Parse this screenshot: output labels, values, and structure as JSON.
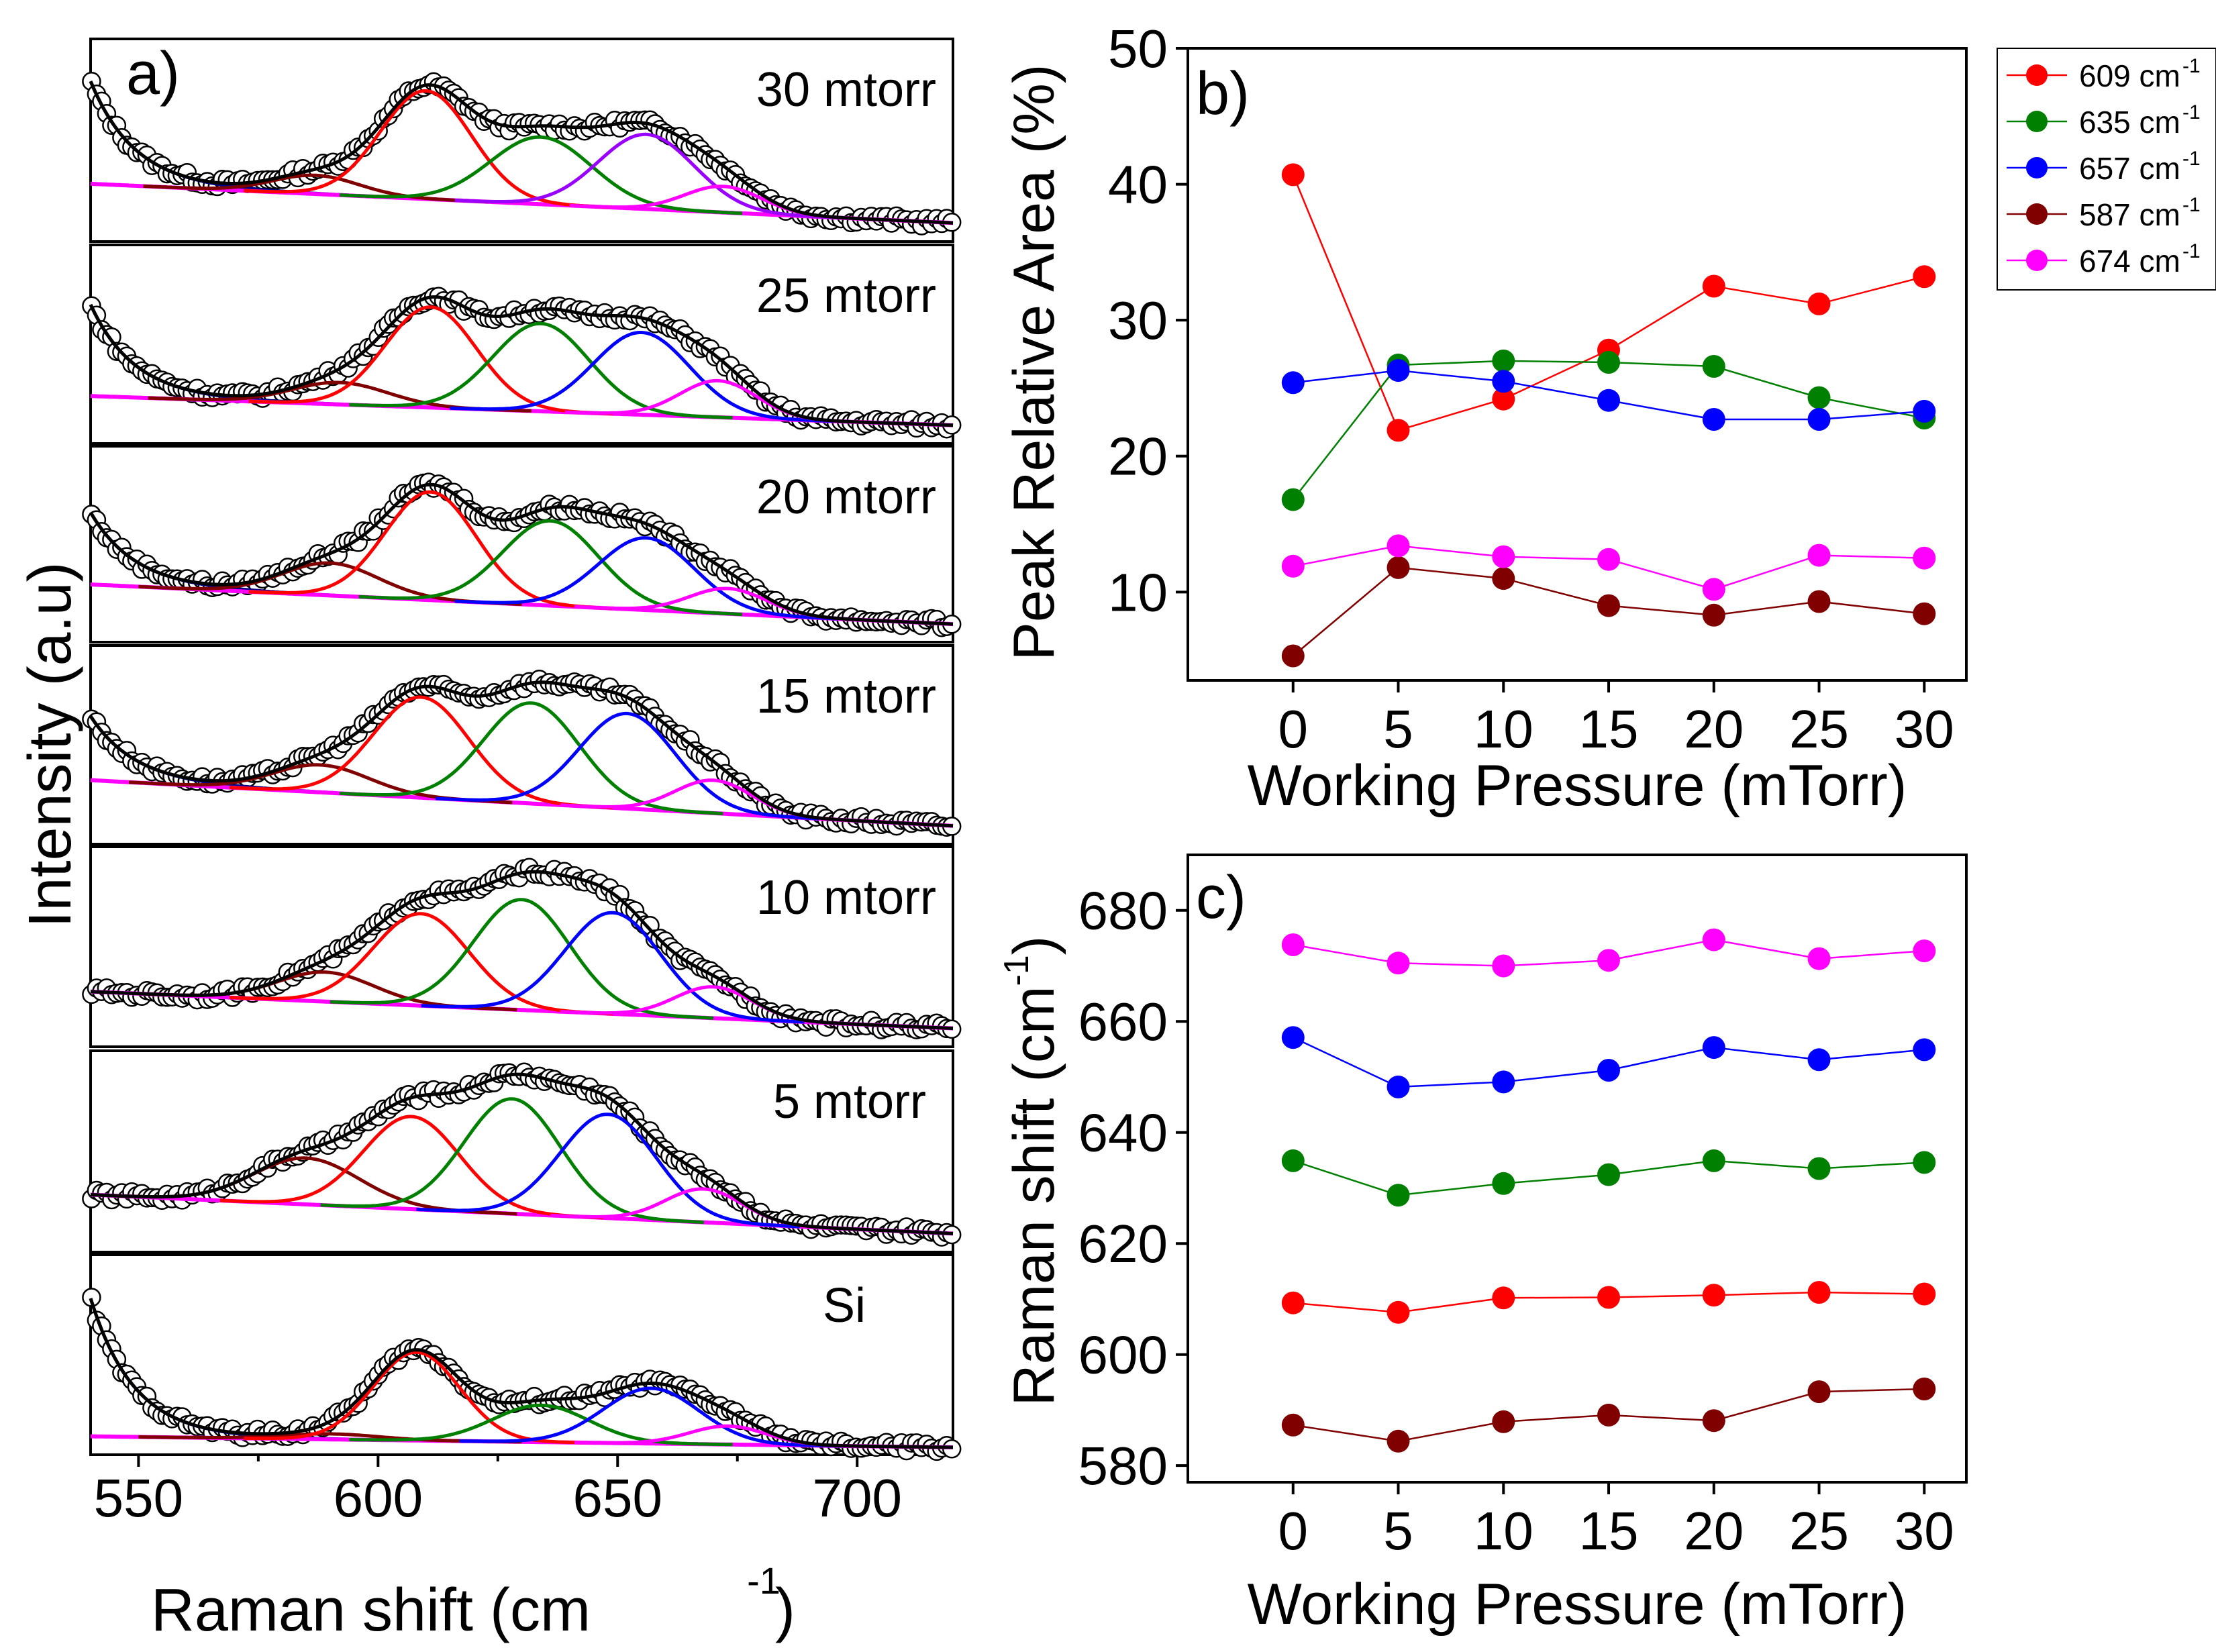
{
  "colors": {
    "red": "#ff0000",
    "green": "#008000",
    "blue": "#0000ff",
    "maroon": "#800000",
    "magenta": "#ff00ff",
    "purple": "#9900ff",
    "navy": "#000080",
    "black": "#000000"
  },
  "chart_data": [
    {
      "id": "a",
      "type": "line",
      "panel_label": "a)",
      "xlabel": "Raman shift (cm",
      "xlabel_sup": "-1",
      "xlabel_tail": ")",
      "ylabel": "Intensity (a.u)",
      "xlim": [
        540,
        720
      ],
      "x_ticks": [
        550,
        600,
        650,
        700
      ],
      "grid": false,
      "fit_components": [
        "587 cm-1 (maroon)",
        "609 cm-1 (red)",
        "635 cm-1 (green)",
        "657 cm-1 (blue/purple)",
        "674 cm-1 (magenta)",
        "baseline (magenta)",
        "envelope (black)",
        "measured (open circles)"
      ],
      "spectra": [
        {
          "label": "30 mtorr",
          "baseline": [
            0.31,
            0.1
          ],
          "left_decay": 0.55,
          "peaks": [
            [
              587,
              0.1,
              9
            ],
            [
              610,
              0.58,
              9.5
            ],
            [
              634,
              0.36,
              10.5
            ],
            [
              656,
              0.4,
              10
            ],
            [
              672,
              0.14,
              8
            ]
          ],
          "peak4_color": "#9900ff"
        },
        {
          "label": "25 mtorr",
          "baseline": [
            0.26,
            0.1
          ],
          "left_decay": 0.5,
          "peaks": [
            [
              592,
              0.12,
              10
            ],
            [
              611,
              0.55,
              9.5
            ],
            [
              634,
              0.48,
              10
            ],
            [
              655,
              0.45,
              10
            ],
            [
              671,
              0.2,
              8
            ]
          ],
          "peak4_color": "#0000ff"
        },
        {
          "label": "20 mtorr",
          "baseline": [
            0.32,
            0.1
          ],
          "left_decay": 0.4,
          "peaks": [
            [
              590,
              0.18,
              10
            ],
            [
              611,
              0.6,
              9.5
            ],
            [
              636,
              0.47,
              10
            ],
            [
              656,
              0.4,
              10
            ],
            [
              673,
              0.14,
              8
            ]
          ],
          "peak4_color": "#0000ff"
        },
        {
          "label": "15 mtorr",
          "baseline": [
            0.35,
            0.1
          ],
          "left_decay": 0.35,
          "peaks": [
            [
              588,
              0.15,
              10
            ],
            [
              609,
              0.55,
              10
            ],
            [
              632,
              0.55,
              10
            ],
            [
              652,
              0.52,
              10
            ],
            [
              670,
              0.18,
              8
            ]
          ],
          "peak4_color": "#0000ff"
        },
        {
          "label": "10 mtorr",
          "baseline": [
            0.3,
            0.1
          ],
          "left_decay": 0.0,
          "peaks": [
            [
              589,
              0.16,
              10
            ],
            [
              609,
              0.5,
              10
            ],
            [
              630,
              0.6,
              10
            ],
            [
              649,
              0.55,
              10
            ],
            [
              670,
              0.17,
              8
            ]
          ],
          "peak4_color": "#0000ff"
        },
        {
          "label": "5 mtorr",
          "baseline": [
            0.31,
            0.1
          ],
          "left_decay": 0.0,
          "peaks": [
            [
              585,
              0.25,
              11
            ],
            [
              607,
              0.5,
              10
            ],
            [
              628,
              0.62,
              10
            ],
            [
              648,
              0.56,
              10
            ],
            [
              668,
              0.18,
              8
            ]
          ],
          "peak4_color": "#0000ff"
        },
        {
          "label": "Si",
          "baseline": [
            0.1,
            0.04
          ],
          "left_decay": 0.75,
          "peaks": [
            [
              590,
              0.03,
              10
            ],
            [
              608,
              0.48,
              9
            ],
            [
              634,
              0.2,
              10
            ],
            [
              657,
              0.3,
              10
            ],
            [
              673,
              0.1,
              8
            ]
          ],
          "peak4_color": "#0000ff"
        }
      ]
    },
    {
      "id": "b",
      "type": "scatter",
      "panel_label": "b)",
      "xlabel": "Working Pressure (mTorr)",
      "ylabel": "Peak Relative Area (%)",
      "xlim": [
        -5,
        32
      ],
      "ylim": [
        3.5,
        50
      ],
      "x_ticks": [
        0,
        5,
        10,
        15,
        20,
        25,
        30
      ],
      "y_ticks": [
        10,
        20,
        30,
        40,
        50
      ],
      "x": [
        0,
        5,
        10,
        15,
        20,
        25,
        30
      ],
      "legend_position": "right",
      "series": [
        {
          "name": "609 cm",
          "sup": "-1",
          "color": "#ff0000",
          "values": [
            40.7,
            21.9,
            24.2,
            27.8,
            32.5,
            31.2,
            33.2
          ]
        },
        {
          "name": "635 cm",
          "sup": "-1",
          "color": "#008000",
          "values": [
            16.8,
            26.7,
            27.0,
            26.9,
            26.6,
            24.3,
            22.8
          ]
        },
        {
          "name": "657 cm",
          "sup": "-1",
          "color": "#0000ff",
          "values": [
            25.4,
            26.3,
            25.5,
            24.1,
            22.7,
            22.7,
            23.3
          ]
        },
        {
          "name": "587 cm",
          "sup": "-1",
          "color": "#800000",
          "values": [
            5.3,
            11.8,
            11.0,
            9.0,
            8.3,
            9.3,
            8.4
          ]
        },
        {
          "name": "674 cm",
          "sup": "-1",
          "color": "#ff00ff",
          "values": [
            11.9,
            13.4,
            12.6,
            12.4,
            10.2,
            12.7,
            12.5
          ]
        }
      ]
    },
    {
      "id": "c",
      "type": "scatter",
      "panel_label": "c)",
      "xlabel": "Working Pressure (mTorr)",
      "ylabel": "Raman shift (cm",
      "ylabel_sup": "-1",
      "ylabel_tail": ")",
      "xlim": [
        -5,
        32
      ],
      "ylim": [
        577,
        690
      ],
      "x_ticks": [
        0,
        5,
        10,
        15,
        20,
        25,
        30
      ],
      "y_ticks": [
        580,
        600,
        620,
        640,
        660,
        680
      ],
      "x": [
        0,
        5,
        10,
        15,
        20,
        25,
        30
      ],
      "series": [
        {
          "name": "674",
          "color": "#ff00ff",
          "values": [
            673.8,
            670.5,
            670.0,
            671.0,
            674.7,
            671.3,
            672.7
          ]
        },
        {
          "name": "657",
          "color": "#0000ff",
          "values": [
            657.1,
            648.2,
            649.1,
            651.2,
            655.3,
            653.1,
            654.9
          ]
        },
        {
          "name": "635",
          "color": "#008000",
          "values": [
            634.9,
            628.7,
            630.8,
            632.4,
            634.9,
            633.5,
            634.6
          ]
        },
        {
          "name": "609",
          "color": "#ff0000",
          "values": [
            609.3,
            607.6,
            610.2,
            610.3,
            610.7,
            611.2,
            610.9
          ]
        },
        {
          "name": "587",
          "color": "#800000",
          "values": [
            587.3,
            584.4,
            587.9,
            589.1,
            588.1,
            593.3,
            593.8
          ]
        }
      ]
    }
  ]
}
